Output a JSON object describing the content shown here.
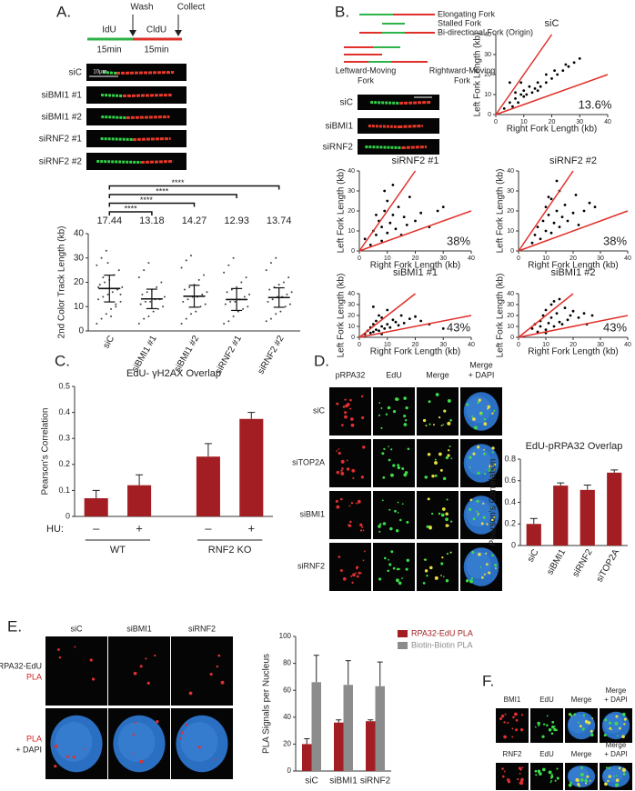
{
  "panel_labels": [
    "A.",
    "B.",
    "C.",
    "D.",
    "E.",
    "F."
  ],
  "schematic_a": {
    "wash": "Wash",
    "collect": "Collect",
    "first_label": "IdU",
    "second_label": "CldU",
    "durations": [
      "15min",
      "15min"
    ]
  },
  "fiber_images_a": {
    "rows": [
      "siC",
      "siBMI1 #1",
      "siBMI1 #2",
      "siRNF2 #1",
      "siRNF2 #2"
    ],
    "scale": "10μm"
  },
  "schematic_b": {
    "legend": [
      "Elongating Fork",
      "Stalled Fork",
      "Bi-directional Fork (Origin)"
    ],
    "left": [
      "Leftward-Moving",
      "Fork"
    ],
    "right": [
      "Rightward-Moving",
      "Fork"
    ]
  },
  "fiber_images_b": {
    "rows": [
      "siC",
      "siBMI1",
      "siRNF2"
    ]
  },
  "images_d": {
    "columns": [
      [
        "pRPA32"
      ],
      [
        "EdU"
      ],
      [
        "Merge"
      ],
      [
        "Merge",
        "+ DAPI"
      ]
    ],
    "rows": [
      "siC",
      "siTOP2A",
      "siBMI1",
      "siRNF2"
    ]
  },
  "images_e": {
    "columns": [
      "siC",
      "siBMI1",
      "siRNF2"
    ],
    "row_labels": [
      [
        "RPA32-EdU",
        "PLA"
      ],
      [
        "PLA",
        "+ DAPI"
      ]
    ]
  },
  "images_f": {
    "rows": [
      {
        "columns": [
          [
            "BMI1"
          ],
          [
            "EdU"
          ],
          [
            "Merge"
          ],
          [
            "Merge",
            "+ DAPI"
          ]
        ]
      },
      {
        "columns": [
          [
            "RNF2"
          ],
          [
            "EdU"
          ],
          [
            "Merge"
          ],
          [
            "Merge",
            "+ DAPI"
          ]
        ]
      }
    ]
  },
  "chart_data": [
    {
      "type": "dot",
      "ylabel": "2nd Color Track Length (kb)",
      "categories": [
        "siC",
        "siBMI1 #1",
        "siBMI1 #2",
        "siRNF2 #1",
        "siRNF2 #2"
      ],
      "values": [
        17.44,
        13.18,
        14.27,
        12.93,
        13.74
      ],
      "error": [
        5.5,
        4,
        4.5,
        4.5,
        4
      ],
      "points": [
        [
          3,
          5,
          7,
          9,
          10,
          12,
          13,
          14,
          15,
          16,
          17,
          18,
          19,
          20,
          21,
          23,
          25,
          27,
          30,
          33,
          6,
          11,
          15,
          18,
          22,
          28
        ],
        [
          3,
          5,
          6,
          8,
          9,
          10,
          11,
          12,
          12,
          13,
          13,
          14,
          15,
          16,
          17,
          18,
          20,
          22,
          25,
          28
        ],
        [
          3,
          5,
          7,
          8,
          10,
          11,
          12,
          13,
          14,
          14,
          15,
          16,
          17,
          18,
          19,
          21,
          23,
          26,
          29,
          31
        ],
        [
          3,
          4,
          6,
          8,
          9,
          10,
          11,
          12,
          12,
          13,
          14,
          15,
          16,
          17,
          18,
          20,
          22,
          24,
          27,
          30
        ],
        [
          4,
          5,
          7,
          8,
          10,
          11,
          12,
          13,
          14,
          14,
          15,
          16,
          17,
          18,
          19,
          20,
          22,
          25,
          28,
          30
        ]
      ],
      "significance": [
        "****",
        "****",
        "****",
        "****"
      ],
      "color": "#222222",
      "ylim": [
        0,
        40
      ],
      "yticks": [
        0,
        10,
        20,
        30,
        40
      ]
    },
    {
      "type": "scatter",
      "title": "siC",
      "annotation": "13.6%",
      "xlabel": "Right Fork Length (kb)",
      "ylabel": "Left Fork Length (kb)",
      "x": [
        3,
        5,
        6,
        7,
        8,
        9,
        10,
        10,
        11,
        12,
        13,
        14,
        15,
        15,
        16,
        18,
        18,
        20,
        21,
        22,
        24,
        25,
        26,
        28,
        30,
        5,
        9,
        7
      ],
      "y": [
        3,
        6,
        4,
        8,
        6,
        10,
        9,
        12,
        10,
        14,
        11,
        13,
        12,
        16,
        14,
        16,
        20,
        18,
        22,
        20,
        22,
        25,
        24,
        26,
        28,
        16,
        16,
        11
      ],
      "xlim": [
        0,
        40
      ],
      "ylim": [
        0,
        40
      ],
      "xticks": [
        0,
        10,
        20,
        30,
        40
      ],
      "yticks": [
        0,
        10,
        20,
        30,
        40
      ],
      "reference_slopes": [
        2,
        0.5
      ],
      "line_color": "#e0302a",
      "color": "#000000"
    },
    {
      "type": "scatter",
      "title": "siRNF2 #1",
      "annotation": "38%",
      "xlabel": "Right Fork Length (kb)",
      "ylabel": "Left Fork Length (kb)",
      "x": [
        2,
        4,
        5,
        6,
        7,
        8,
        8,
        9,
        10,
        10,
        11,
        12,
        13,
        14,
        15,
        16,
        17,
        18,
        20,
        22,
        25,
        28,
        30,
        9,
        12,
        6
      ],
      "y": [
        6,
        3,
        10,
        8,
        15,
        5,
        12,
        20,
        9,
        25,
        14,
        18,
        11,
        22,
        8,
        17,
        13,
        27,
        15,
        19,
        12,
        20,
        22,
        30,
        33,
        18
      ],
      "xlim": [
        0,
        40
      ],
      "ylim": [
        0,
        40
      ],
      "xticks": [
        0,
        10,
        20,
        30,
        40
      ],
      "yticks": [
        0,
        10,
        20,
        30,
        40
      ],
      "reference_slopes": [
        2,
        0.5
      ],
      "line_color": "#e0302a",
      "color": "#000000"
    },
    {
      "type": "scatter",
      "title": "siRNF2 #2",
      "annotation": "38%",
      "xlabel": "Right Fork Length (kb)",
      "ylabel": "Left Fork Length (kb)",
      "x": [
        5,
        6,
        7,
        8,
        9,
        10,
        10,
        11,
        12,
        12,
        13,
        14,
        15,
        15,
        16,
        17,
        18,
        20,
        21,
        22,
        24,
        26,
        28,
        14,
        11
      ],
      "y": [
        4,
        8,
        12,
        6,
        15,
        10,
        22,
        18,
        9,
        26,
        14,
        20,
        12,
        30,
        17,
        23,
        15,
        19,
        28,
        13,
        20,
        24,
        22,
        35,
        27
      ],
      "xlim": [
        0,
        40
      ],
      "ylim": [
        0,
        40
      ],
      "xticks": [
        0,
        10,
        20,
        30,
        40
      ],
      "yticks": [
        0,
        10,
        20,
        30,
        40
      ],
      "reference_slopes": [
        2,
        0.5
      ],
      "line_color": "#e0302a",
      "color": "#000000"
    },
    {
      "type": "scatter",
      "title": "siBMI1 #1",
      "annotation": "43%",
      "xlabel": "Right Fork Length (kb)",
      "ylabel": "Left Fork Length (kb)",
      "x": [
        2,
        3,
        4,
        4,
        5,
        5,
        6,
        6,
        7,
        7,
        8,
        8,
        9,
        10,
        10,
        11,
        12,
        13,
        14,
        15,
        16,
        18,
        20,
        22,
        25,
        30,
        5,
        8
      ],
      "y": [
        3,
        6,
        4,
        9,
        5,
        12,
        7,
        15,
        6,
        20,
        10,
        18,
        8,
        12,
        25,
        9,
        16,
        14,
        11,
        20,
        13,
        17,
        19,
        15,
        12,
        8,
        28,
        3
      ],
      "xlim": [
        0,
        40
      ],
      "ylim": [
        0,
        40
      ],
      "xticks": [
        0,
        10,
        20,
        30,
        40
      ],
      "yticks": [
        0,
        10,
        20,
        30,
        40
      ],
      "reference_slopes": [
        2,
        0.5
      ],
      "line_color": "#e0302a",
      "color": "#000000"
    },
    {
      "type": "scatter",
      "title": "siBMI1 #2",
      "annotation": "43%",
      "xlabel": "Right Fork Length (kb)",
      "ylabel": "Left Fork Length (kb)",
      "x": [
        5,
        6,
        7,
        8,
        8,
        9,
        10,
        10,
        11,
        12,
        12,
        13,
        14,
        15,
        15,
        16,
        17,
        18,
        19,
        20,
        22,
        24,
        25,
        27,
        13,
        10
      ],
      "y": [
        8,
        12,
        5,
        15,
        10,
        20,
        7,
        25,
        13,
        18,
        30,
        10,
        22,
        14,
        35,
        12,
        27,
        16,
        20,
        24,
        18,
        22,
        12,
        20,
        33,
        4
      ],
      "xlim": [
        0,
        40
      ],
      "ylim": [
        0,
        40
      ],
      "xticks": [
        0,
        10,
        20,
        30,
        40
      ],
      "yticks": [
        0,
        10,
        20,
        30,
        40
      ],
      "reference_slopes": [
        2,
        0.5
      ],
      "line_color": "#e0302a",
      "color": "#000000"
    },
    {
      "type": "bar",
      "title": "EdU- γH2AX Overlap",
      "ylabel": "Pearson's Correlation",
      "category_title": "HU:",
      "categories": [
        "–",
        "+",
        "–",
        "+"
      ],
      "groups": [
        "WT",
        "RNF2 KO"
      ],
      "values": [
        0.07,
        0.12,
        0.23,
        0.375
      ],
      "error": [
        0.03,
        0.04,
        0.05,
        0.025
      ],
      "color": "#a31e22",
      "ylim": [
        0,
        0.5
      ],
      "yticks": [
        0,
        0.1,
        0.2,
        0.3,
        0.4,
        0.5
      ]
    },
    {
      "type": "bar",
      "title": "EdU-pRPA32 Overlap",
      "ylabel": "Pearson's Correlation",
      "categories": [
        "siC",
        "siBMI1",
        "siRNF2",
        "siTOP2A"
      ],
      "values": [
        0.2,
        0.555,
        0.515,
        0.675
      ],
      "error": [
        0.05,
        0.025,
        0.045,
        0.025
      ],
      "color": "#a31e22",
      "ylim": [
        0,
        0.8
      ],
      "yticks": [
        0,
        0.2,
        0.4,
        0.6,
        0.8
      ]
    },
    {
      "type": "grouped_bar",
      "ylabel": "PLA Signals per Nucleus",
      "categories": [
        "siC",
        "siBMI1",
        "siRNF2"
      ],
      "series": [
        {
          "name": "RPA32-EdU PLA",
          "color": "#a31e22",
          "values": [
            20,
            36,
            37
          ],
          "error": [
            4,
            2,
            1
          ]
        },
        {
          "name": "Biotin-Biotin PLA",
          "color": "#8c8c8c",
          "values": [
            66,
            64,
            63
          ],
          "error": [
            20,
            18,
            18
          ]
        }
      ],
      "ylim": [
        0,
        100
      ],
      "yticks": [
        0,
        20,
        40,
        60,
        80,
        100
      ]
    }
  ]
}
